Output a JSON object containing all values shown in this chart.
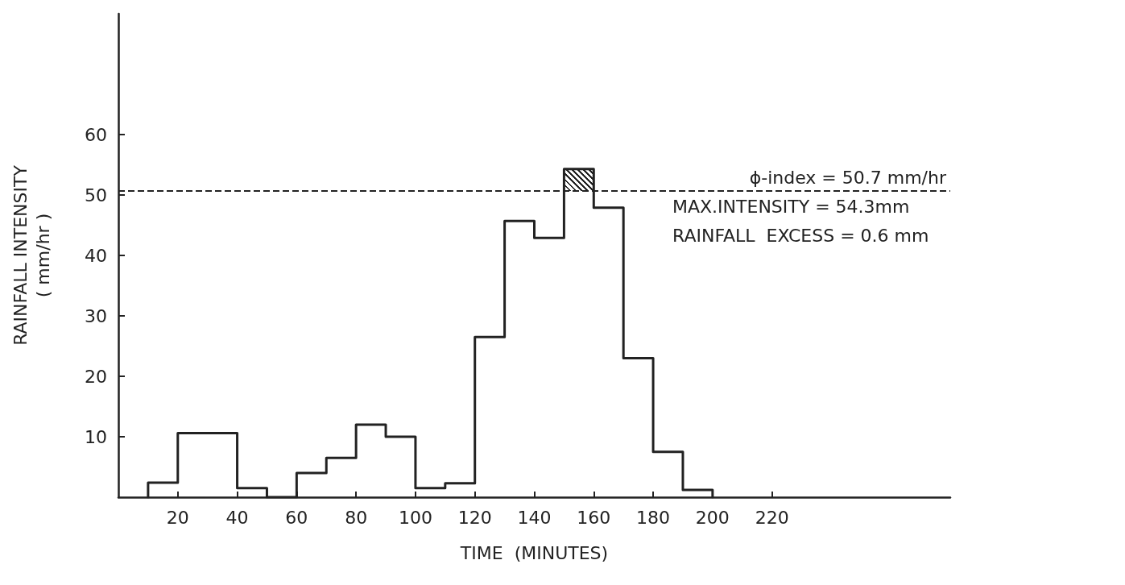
{
  "chart_data": {
    "type": "step",
    "xlabel": "TIME  (MINUTES)",
    "ylabel": "RAINFALL INTENSITY\n( mm/hr )",
    "x": [
      10,
      10,
      20,
      30,
      40,
      50,
      60,
      70,
      80,
      90,
      100,
      110,
      120,
      130,
      140,
      150,
      160,
      170,
      180,
      190,
      200
    ],
    "values": [
      0,
      2.4,
      10.6,
      10.6,
      1.5,
      0,
      4,
      6.5,
      12,
      10,
      1.5,
      2.3,
      26.5,
      45.7,
      42.9,
      54.3,
      47.9,
      23,
      7.5,
      1.2,
      0
    ],
    "color": "#222222",
    "xlim": [
      0,
      280
    ],
    "xticks": [
      20,
      40,
      60,
      80,
      100,
      120,
      140,
      160,
      180,
      200,
      220
    ],
    "ylim": [
      0,
      80
    ],
    "yticks": [
      10,
      20,
      30,
      40,
      50,
      60
    ],
    "ref_lines": [
      {
        "axis": "y",
        "value": 50.7,
        "label": "ϕ-index = 50.7 mm/hr",
        "line_style": "dashed",
        "color": "#222222"
      }
    ],
    "annotations": [
      "MAX.INTENSITY = 54.3mm",
      "RAINFALL  EXCESS = 0.6 mm"
    ],
    "grid": false
  }
}
